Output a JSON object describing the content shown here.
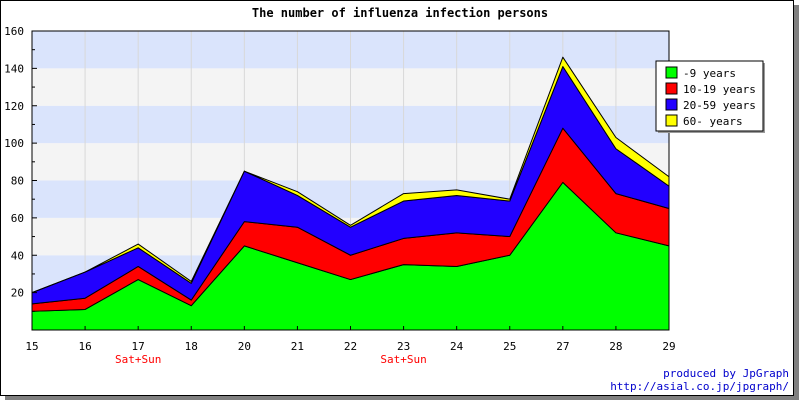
{
  "chart_data": {
    "type": "area",
    "stacked": true,
    "title": "The number of influenza infection persons",
    "categories": [
      "15",
      "16",
      "17",
      "18",
      "20",
      "21",
      "22",
      "23",
      "24",
      "25",
      "27",
      "28",
      "29"
    ],
    "subcategory_labels": [
      "",
      "",
      "Sat+Sun",
      "",
      "",
      "",
      "",
      "Sat+Sun",
      "",
      "",
      "",
      "",
      ""
    ],
    "ylim": [
      0,
      160
    ],
    "yticks": [
      20,
      40,
      60,
      80,
      100,
      120,
      140,
      160
    ],
    "grid": true,
    "legend_position": "right",
    "series": [
      {
        "name": "-9 years",
        "color": "#00ff00",
        "values": [
          10,
          11,
          27,
          13,
          45,
          36,
          27,
          35,
          34,
          40,
          79,
          52,
          45
        ]
      },
      {
        "name": "10-19 years",
        "color": "#ff0000",
        "values": [
          4,
          6,
          7,
          3,
          13,
          19,
          13,
          14,
          18,
          10,
          29,
          21,
          20
        ]
      },
      {
        "name": "20-59 years",
        "color": "#2200ff",
        "values": [
          6,
          14,
          10,
          9,
          27,
          17,
          15,
          20,
          20,
          19,
          33,
          24,
          12
        ]
      },
      {
        "name": "60- years",
        "color": "#ffff00",
        "values": [
          0,
          0,
          2,
          1,
          0,
          2,
          1,
          4,
          3,
          1,
          5,
          6,
          5
        ]
      }
    ]
  },
  "credits": {
    "line1": "produced by JpGraph",
    "line2": "http://asial.co.jp/jpgraph/"
  }
}
